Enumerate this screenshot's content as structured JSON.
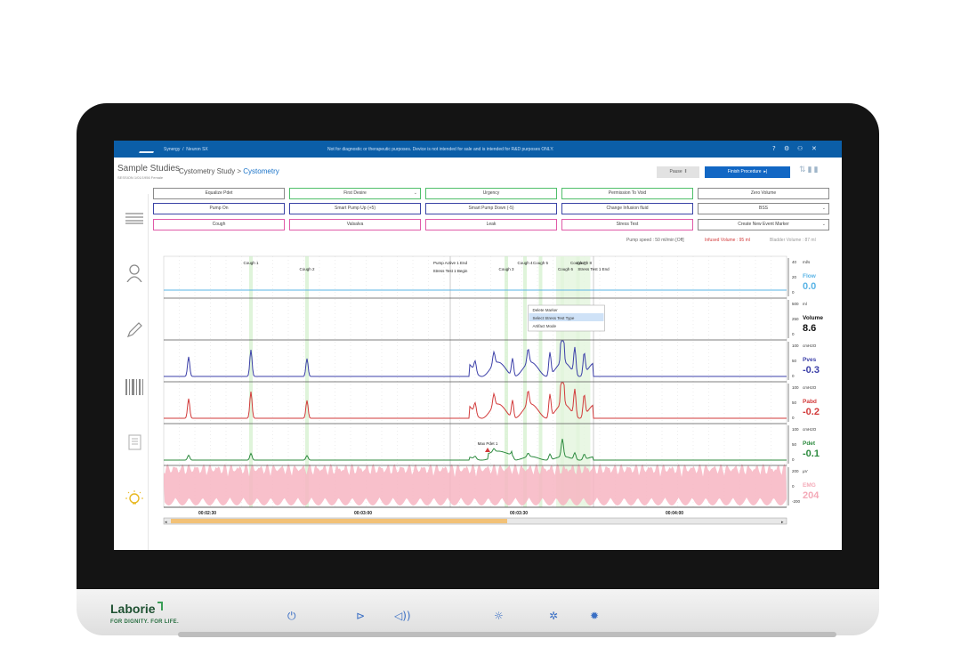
{
  "window": {
    "app_name": "Synergy",
    "section": "Neuron SX",
    "notice": "Not for diagnostic or therapeutic purposes. Device is not intended for sale and is intended for R&D purposes ONLY."
  },
  "header": {
    "study_group": "Sample Studies",
    "patient_info": "SESSION  1/01/1956  Female",
    "breadcrumb_parent": "Cystometry Study",
    "breadcrumb_sep": ">",
    "breadcrumb_current": "Cystometry",
    "pause_label": "Pause",
    "finish_label": "Finish Procedure"
  },
  "event_buttons": [
    {
      "label": "Equalize Pdet",
      "color": "#8a8a8a"
    },
    {
      "label": "First Desire",
      "color": "#4fbf6a",
      "dropdown": true
    },
    {
      "label": "Urgency",
      "color": "#4fbf6a"
    },
    {
      "label": "Permission To Void",
      "color": "#4fbf6a"
    },
    {
      "label": "Zero Volume",
      "color": "#8a8a8a"
    },
    {
      "label": "Pump On",
      "color": "#3b44a6"
    },
    {
      "label": "Smart Pump Up (+5)",
      "color": "#3b44a6"
    },
    {
      "label": "Smart Pump Down (-5)",
      "color": "#3b44a6"
    },
    {
      "label": "Change Infusion fluid",
      "color": "#3b44a6"
    },
    {
      "label": "BSS",
      "color": "#8a8a8a",
      "dropdown": true
    },
    {
      "label": "Cough",
      "color": "#e05aa8"
    },
    {
      "label": "Valsalva",
      "color": "#e05aa8"
    },
    {
      "label": "Leak",
      "color": "#e05aa8"
    },
    {
      "label": "Stress Test",
      "color": "#e05aa8"
    },
    {
      "label": "Create New Event Marker",
      "color": "#8a8a8a",
      "dropdown": true
    }
  ],
  "status": {
    "pump_speed": "Pump speed : 50 ml/min [Off]",
    "infused_volume": "Infused Volume : 95 ml",
    "voided_volume": "Bladder Volume : 87 ml"
  },
  "channels": [
    {
      "name": "Flow",
      "value": "0.0",
      "unit_top": "ml/s",
      "color": "#5ab4e6",
      "ticks": [
        "40",
        "20",
        "0"
      ]
    },
    {
      "name": "Volume",
      "value": "8.6",
      "unit_top": "ml",
      "color": "#111111",
      "ticks": [
        "500",
        "250",
        "0"
      ]
    },
    {
      "name": "Pves",
      "value": "-0.3",
      "unit_top": "cmH2O",
      "color": "#3b3fa8",
      "ticks": [
        "100",
        "50",
        "0"
      ]
    },
    {
      "name": "Pabd",
      "value": "-0.2",
      "unit_top": "cmH2O",
      "color": "#d23a3a",
      "ticks": [
        "100",
        "50",
        "0"
      ]
    },
    {
      "name": "Pdet",
      "value": "-0.1",
      "unit_top": "cmH2O",
      "color": "#2c8a3e",
      "ticks": [
        "100",
        "50",
        "0"
      ]
    },
    {
      "name": "EMG",
      "value": "204",
      "unit_top": "µV",
      "color": "#f4aab8",
      "ticks": [
        "200",
        "0",
        "-200"
      ]
    }
  ],
  "time_labels": [
    "00:02:30",
    "00:03:00",
    "00:03:30",
    "00:04:00"
  ],
  "markers": [
    {
      "label": "Cough 1",
      "t": 0.14
    },
    {
      "label": "Cough 2",
      "t": 0.23
    },
    {
      "label": "Pump Active 1 End",
      "t": 0.46
    },
    {
      "label": "Stress Test 1 Begin",
      "t": 0.46
    },
    {
      "label": "Cough 3",
      "t": 0.55
    },
    {
      "label": "Cough 4",
      "t": 0.58
    },
    {
      "label": "Cough 5",
      "t": 0.605
    },
    {
      "label": "Cough 6",
      "t": 0.645
    },
    {
      "label": "Cough 7",
      "t": 0.665
    },
    {
      "label": "Cough 8",
      "t": 0.675
    },
    {
      "label": "Stress Test 1 End",
      "t": 0.69
    },
    {
      "label": "Max Pdet 1",
      "t": 0.52
    }
  ],
  "context_menu": {
    "items": [
      "Delete Marker",
      "Select Stress Test Type",
      "Artifact Mode"
    ],
    "highlighted": 1
  },
  "device": {
    "brand": "Laborie",
    "tagline": "FOR DIGNITY. FOR LIFE."
  },
  "colors": {
    "accent": "#0b5ea8",
    "marker_band": "#c9ecc1"
  }
}
